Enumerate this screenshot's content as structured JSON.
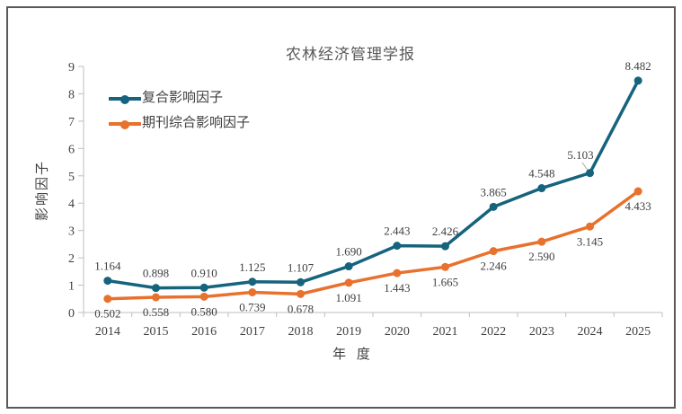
{
  "chart_data": {
    "type": "line",
    "title": "农林经济管理学报",
    "xlabel": "年 度",
    "ylabel": "影响因子",
    "categories": [
      "2014",
      "2015",
      "2016",
      "2017",
      "2018",
      "2019",
      "2020",
      "2021",
      "2022",
      "2023",
      "2024",
      "2025"
    ],
    "series": [
      {
        "name": "复合影响因子",
        "color": "#16637E",
        "values": [
          1.164,
          0.898,
          0.91,
          1.125,
          1.107,
          1.69,
          2.443,
          2.426,
          3.865,
          4.548,
          5.103,
          8.482
        ],
        "label_position": "above"
      },
      {
        "name": "期刊综合影响因子",
        "color": "#E8712D",
        "values": [
          0.502,
          0.558,
          0.58,
          0.739,
          0.678,
          1.091,
          1.443,
          1.665,
          2.246,
          2.59,
          3.145,
          4.433
        ],
        "label_position": "below"
      }
    ],
    "ylim": [
      0,
      9
    ],
    "yticks": [
      0,
      1,
      2,
      3,
      4,
      5,
      6,
      7,
      8,
      9
    ],
    "grid": false,
    "legend_position": "top-left",
    "marker": "circle",
    "value_label_decimals": 3
  },
  "colors": {
    "axis": "#BFBFBF",
    "tick_text": "#404040",
    "value_label_text": "#404040",
    "title_text": "#595959",
    "frame_border": "#595959",
    "leader_line": "#A6A6A6",
    "background": "#FFFFFF"
  }
}
